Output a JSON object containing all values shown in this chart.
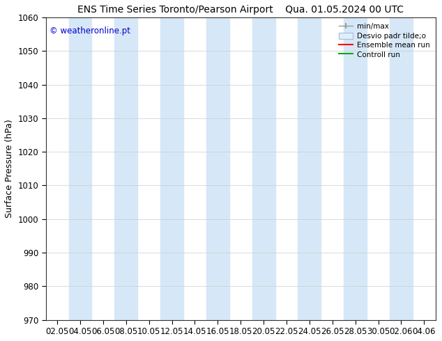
{
  "title_left": "ENS Time Series Toronto/Pearson Airport",
  "title_right": "Qua. 01.05.2024 00 UTC",
  "ylabel": "Surface Pressure (hPa)",
  "ylim": [
    970,
    1060
  ],
  "yticks": [
    970,
    980,
    990,
    1000,
    1010,
    1020,
    1030,
    1040,
    1050,
    1060
  ],
  "xtick_labels": [
    "02.05",
    "04.05",
    "06.05",
    "08.05",
    "10.05",
    "12.05",
    "14.05",
    "16.05",
    "18.05",
    "20.05",
    "22.05",
    "24.05",
    "26.05",
    "28.05",
    "30.05",
    "02.06",
    "04.06"
  ],
  "watermark": "© weatheronline.pt",
  "watermark_color": "#0000cc",
  "bg_color": "#ffffff",
  "plot_bg_color": "#ffffff",
  "band_color": "#d6e8f7",
  "band_positions": [
    1,
    3,
    5,
    7,
    9,
    11,
    13,
    15
  ],
  "legend_entries": [
    "min/max",
    "Desvio padr tilde;o",
    "Ensemble mean run",
    "Controll run"
  ],
  "legend_colors_line": [
    "#999999",
    "#bbccdd",
    "#ff0000",
    "#00aa00"
  ],
  "title_fontsize": 10,
  "label_fontsize": 9,
  "tick_fontsize": 8.5
}
